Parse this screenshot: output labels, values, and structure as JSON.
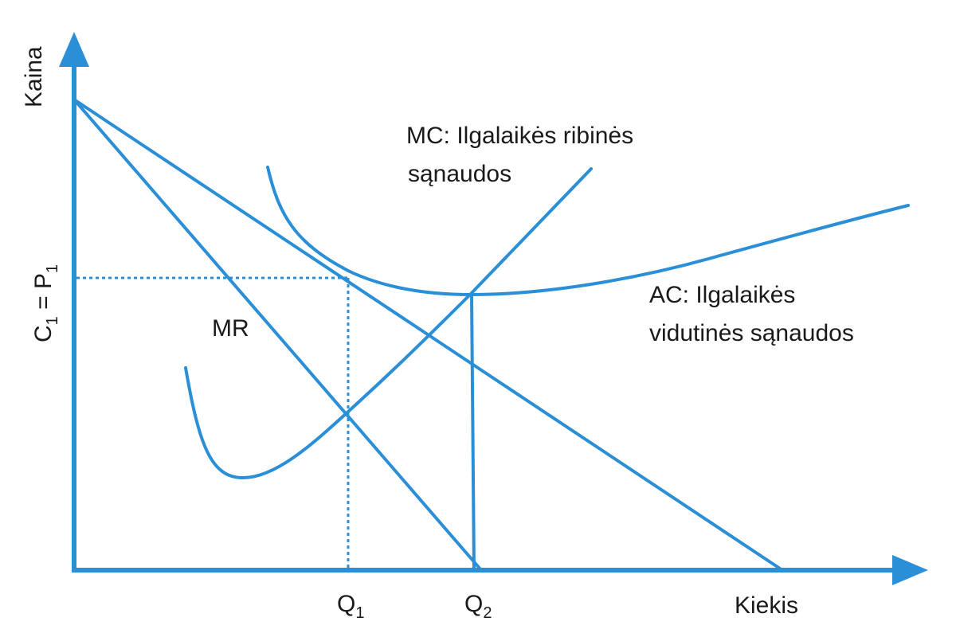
{
  "colors": {
    "line": "#2a8fd6",
    "text": "#1a1a1a",
    "background": "#ffffff"
  },
  "axes": {
    "y_label": "Kaina",
    "x_label": "Kiekis",
    "price_label": {
      "c": "C",
      "c_sub": "1",
      "equals": " = ",
      "p": "P",
      "p_sub": "1"
    },
    "q1": {
      "q": "Q",
      "sub": "1"
    },
    "q2": {
      "q": "Q",
      "sub": "2"
    }
  },
  "curves": {
    "mr_label": "MR",
    "mc_label_line1": "MC: Ilgalaikės ribinės",
    "mc_label_line2": "sąnaudos",
    "ac_label_line1": "AC: Ilgalaikės",
    "ac_label_line2": "vidutinės sąnaudos"
  }
}
